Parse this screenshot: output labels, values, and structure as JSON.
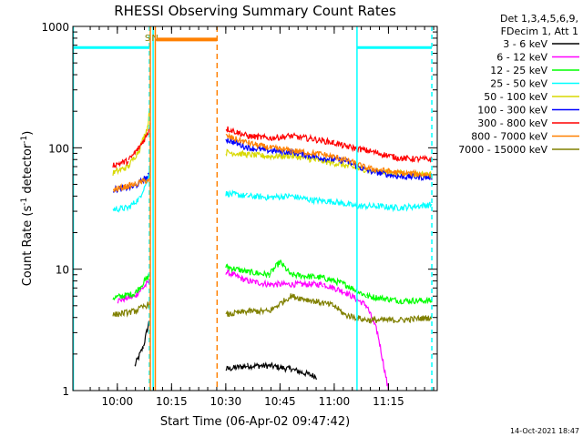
{
  "chart_data": {
    "type": "line",
    "title": "RHESSI Observing Summary Count Rates",
    "xlabel": "Start Time (06-Apr-02 09:47:42)",
    "ylabel": "Count Rate (s",
    "ylabel_sup1": "-1",
    "ylabel_mid": " detector",
    "ylabel_sup2": "-1",
    "ylabel_end": ")",
    "yscale": "log",
    "xlim": [
      9.795,
      11.475
    ],
    "ylim": [
      1,
      1000
    ],
    "x_ticks": [
      {
        "value": 10.0,
        "label": "10:00"
      },
      {
        "value": 10.25,
        "label": "10:15"
      },
      {
        "value": 10.5,
        "label": "10:30"
      },
      {
        "value": 10.75,
        "label": "10:45"
      },
      {
        "value": 11.0,
        "label": "11:00"
      },
      {
        "value": 11.25,
        "label": "11:15"
      }
    ],
    "y_ticks": [
      {
        "value": 1,
        "label": "1"
      },
      {
        "value": 10,
        "label": "10"
      },
      {
        "value": 100,
        "label": "100"
      },
      {
        "value": 1000,
        "label": "1000"
      }
    ],
    "legend_header": [
      "Det 1,3,4,5,6,9,",
      "FDecim 1, Att 1"
    ],
    "series": [
      {
        "name": "3 - 6 keV",
        "color": "#000000",
        "points": [
          [
            10.08,
            1.6
          ],
          [
            10.12,
            2.3
          ],
          [
            10.148,
            3.8
          ],
          [
            10.5,
            1.5
          ],
          [
            10.6,
            1.6
          ],
          [
            10.7,
            1.6
          ],
          [
            10.8,
            1.5
          ],
          [
            10.92,
            1.3
          ]
        ]
      },
      {
        "name": "6 - 12 keV",
        "color": "#ff00ff",
        "points": [
          [
            10.0,
            5.5
          ],
          [
            10.08,
            6.0
          ],
          [
            10.15,
            8.0
          ],
          [
            10.5,
            9.5
          ],
          [
            10.6,
            8.0
          ],
          [
            10.7,
            7.5
          ],
          [
            10.85,
            7.5
          ],
          [
            10.95,
            7.5
          ],
          [
            11.05,
            6.5
          ],
          [
            11.15,
            5.0
          ],
          [
            11.2,
            3.0
          ],
          [
            11.25,
            1.0
          ]
        ]
      },
      {
        "name": "12 - 25 keV",
        "color": "#00ff00",
        "points": [
          [
            9.98,
            5.8
          ],
          [
            10.08,
            6.3
          ],
          [
            10.15,
            9.0
          ],
          [
            10.5,
            10.5
          ],
          [
            10.6,
            9.5
          ],
          [
            10.7,
            9.0
          ],
          [
            10.75,
            11.5
          ],
          [
            10.8,
            9.0
          ],
          [
            10.95,
            8.5
          ],
          [
            11.05,
            7.5
          ],
          [
            11.15,
            6.0
          ],
          [
            11.3,
            5.5
          ],
          [
            11.45,
            5.5
          ]
        ]
      },
      {
        "name": "25 - 50 keV",
        "color": "#00ffff",
        "points": [
          [
            9.98,
            31
          ],
          [
            10.05,
            32
          ],
          [
            10.1,
            38
          ],
          [
            10.14,
            55
          ],
          [
            10.152,
            75
          ],
          [
            10.5,
            42
          ],
          [
            10.6,
            40
          ],
          [
            10.7,
            39
          ],
          [
            10.8,
            40
          ],
          [
            10.9,
            37
          ],
          [
            11.0,
            36
          ],
          [
            11.1,
            33
          ],
          [
            11.2,
            33
          ],
          [
            11.3,
            32
          ],
          [
            11.45,
            34
          ]
        ]
      },
      {
        "name": "50 - 100 keV",
        "color": "#d8d800",
        "points": [
          [
            9.98,
            62
          ],
          [
            10.05,
            70
          ],
          [
            10.1,
            95
          ],
          [
            10.14,
            150
          ],
          [
            10.152,
            240
          ],
          [
            10.5,
            92
          ],
          [
            10.6,
            88
          ],
          [
            10.7,
            85
          ],
          [
            10.8,
            86
          ],
          [
            10.9,
            80
          ],
          [
            11.0,
            75
          ],
          [
            11.1,
            68
          ],
          [
            11.2,
            64
          ],
          [
            11.3,
            62
          ],
          [
            11.45,
            60
          ]
        ]
      },
      {
        "name": "100 - 300 keV",
        "color": "#0000ff",
        "points": [
          [
            9.98,
            45
          ],
          [
            10.08,
            48
          ],
          [
            10.14,
            58
          ],
          [
            10.15,
            60
          ],
          [
            10.5,
            118
          ],
          [
            10.6,
            100
          ],
          [
            10.7,
            95
          ],
          [
            10.8,
            92
          ],
          [
            10.95,
            82
          ],
          [
            11.05,
            78
          ],
          [
            11.15,
            65
          ],
          [
            11.3,
            58
          ],
          [
            11.45,
            57
          ]
        ]
      },
      {
        "name": "300 - 800 keV",
        "color": "#ff0000",
        "points": [
          [
            9.98,
            72
          ],
          [
            10.05,
            78
          ],
          [
            10.1,
            100
          ],
          [
            10.14,
            130
          ],
          [
            10.152,
            160
          ],
          [
            10.5,
            145
          ],
          [
            10.6,
            125
          ],
          [
            10.7,
            120
          ],
          [
            10.8,
            125
          ],
          [
            10.9,
            118
          ],
          [
            11.0,
            110
          ],
          [
            11.05,
            103
          ],
          [
            11.15,
            95
          ],
          [
            11.3,
            82
          ],
          [
            11.45,
            80
          ]
        ]
      },
      {
        "name": "800 - 7000 keV",
        "color": "#ff8000",
        "points": [
          [
            9.98,
            45
          ],
          [
            10.08,
            50
          ],
          [
            10.15,
            55
          ],
          [
            10.5,
            125
          ],
          [
            10.6,
            110
          ],
          [
            10.7,
            100
          ],
          [
            10.8,
            95
          ],
          [
            10.95,
            88
          ],
          [
            11.05,
            80
          ],
          [
            11.15,
            68
          ],
          [
            11.3,
            62
          ],
          [
            11.45,
            60
          ]
        ]
      },
      {
        "name": "7000 - 15000 keV",
        "color": "#808000",
        "points": [
          [
            9.98,
            4.2
          ],
          [
            10.08,
            4.5
          ],
          [
            10.15,
            5.2
          ],
          [
            10.5,
            4.2
          ],
          [
            10.6,
            4.5
          ],
          [
            10.7,
            4.5
          ],
          [
            10.8,
            6.0
          ],
          [
            10.9,
            5.5
          ],
          [
            11.0,
            5.0
          ],
          [
            11.05,
            4.2
          ],
          [
            11.15,
            3.8
          ],
          [
            11.3,
            3.8
          ],
          [
            11.45,
            4.0
          ]
        ]
      }
    ],
    "markers": [
      {
        "label": "S",
        "value": 10.148,
        "style": "dashed",
        "color": "#00ffff"
      },
      {
        "label": "N",
        "value": 10.165,
        "style": "solid",
        "color": "#00ffff"
      }
    ],
    "attenuator_bar": {
      "x_start": 10.18,
      "x_end": 10.46,
      "y": 780,
      "color": "#ff8000"
    },
    "orange_lines": [
      {
        "value": 10.152,
        "style": "solid"
      },
      {
        "value": 10.175,
        "style": "solid"
      },
      {
        "value": 10.46,
        "style": "dashed"
      }
    ],
    "cyan_lines": [
      {
        "value": 9.797,
        "style": "solid"
      },
      {
        "value": 11.105,
        "style": "solid"
      },
      {
        "value": 11.45,
        "style": "dashed"
      }
    ],
    "cyan_bars": [
      {
        "x_start": 9.797,
        "x_end": 10.148,
        "y": 670
      },
      {
        "x_start": 11.105,
        "x_end": 11.45,
        "y": 670
      }
    ],
    "footer_date": "14-Oct-2021 18:47"
  }
}
